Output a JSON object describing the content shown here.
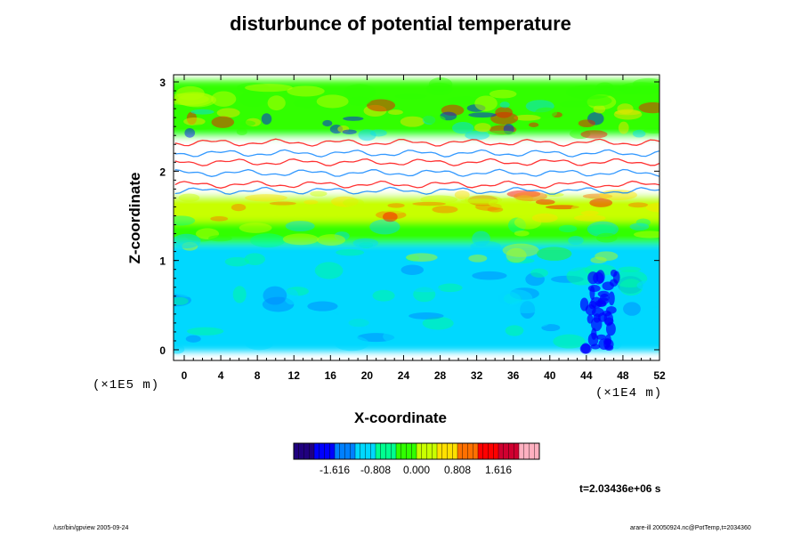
{
  "chart_data": {
    "type": "heatmap",
    "title": "disturbunce of potential temperature",
    "xlabel": "X-coordinate",
    "ylabel": "Z-coordinate",
    "x_unit": "(×1E4 m)",
    "y_unit": "(×1E5 m)",
    "x_ticks": [
      "0",
      "4",
      "8",
      "12",
      "16",
      "20",
      "24",
      "28",
      "32",
      "36",
      "40",
      "44",
      "48",
      "52"
    ],
    "y_ticks": [
      "0",
      "1",
      "2",
      "3"
    ],
    "xlim": [
      0,
      52
    ],
    "ylim": [
      0,
      3
    ],
    "colorbar_ticks": [
      "-1.616",
      "-0.808",
      "0.000",
      "0.808",
      "1.616"
    ],
    "colorbar_range": [
      -2.424,
      2.424
    ],
    "colormap": [
      "#20007f",
      "#0000ff",
      "#0080ff",
      "#00d8ff",
      "#00ff90",
      "#30ff00",
      "#c8ff00",
      "#ffe000",
      "#ff7000",
      "#ff0000",
      "#d00030",
      "#ffb0c0"
    ],
    "layers": [
      {
        "z": [
          0.0,
          0.9
        ],
        "value": -1.2
      },
      {
        "z": [
          0.9,
          1.2
        ],
        "value": -0.9
      },
      {
        "z": [
          1.2,
          1.45
        ],
        "value": -0.1
      },
      {
        "z": [
          1.45,
          1.75
        ],
        "value": 0.4
      },
      {
        "z": [
          1.75,
          2.4
        ],
        "value": "undefined"
      },
      {
        "z": [
          2.4,
          2.75
        ],
        "value": -0.2
      },
      {
        "z": [
          2.75,
          3.0
        ],
        "value": -0.05
      }
    ]
  },
  "time_label": "t=2.03436e+06 s",
  "footer_left": "/usr/bin/gpview 2005-09-24",
  "footer_right": "arare-ill 20050924.nc@PotTemp,t=2034360"
}
